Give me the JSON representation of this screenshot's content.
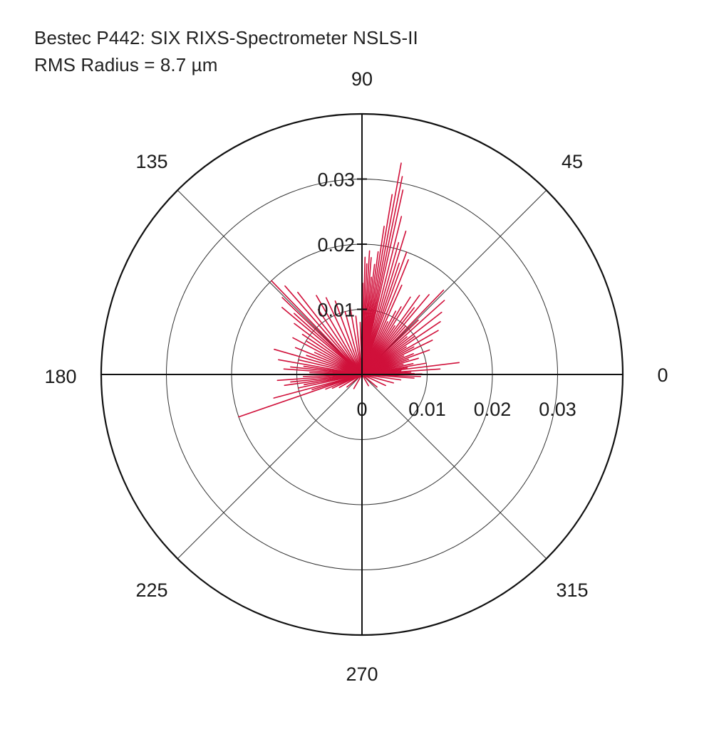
{
  "header": {
    "title": "Bestec P442: SIX RIXS-Spectrometer NSLS-II",
    "subtitle": "RMS Radius = 8.7  µm"
  },
  "chart_data": {
    "type": "polar",
    "title": "Bestec P442: SIX RIXS-Spectrometer NSLS-II",
    "subtitle": "RMS Radius = 8.7  µm",
    "r_range": [
      0,
      0.04
    ],
    "r_ticks": [
      0,
      0.01,
      0.02,
      0.03
    ],
    "r_tick_labels": [
      "0",
      "0.01",
      "0.02",
      "0.03"
    ],
    "angle_ticks": [
      0,
      45,
      90,
      135,
      180,
      225,
      270,
      315
    ],
    "angle_tick_labels": [
      "0",
      "45",
      "90",
      "135",
      "180",
      "225",
      "270",
      "315"
    ],
    "grid": true,
    "series": [
      {
        "color": "#d0103a",
        "points": [
          {
            "theta": 0.0,
            "r": 0.01
          },
          {
            "theta": 0.5,
            "r": 0.0092
          },
          {
            "theta": 1.0,
            "r": 0.008
          },
          {
            "theta": 2.5,
            "r": 0.0075
          },
          {
            "theta": 4.0,
            "r": 0.012
          },
          {
            "theta": 5.5,
            "r": 0.006
          },
          {
            "theta": 7.0,
            "r": 0.015
          },
          {
            "theta": 8.5,
            "r": 0.007
          },
          {
            "theta": 10.0,
            "r": 0.01
          },
          {
            "theta": 12.0,
            "r": 0.008
          },
          {
            "theta": 14.0,
            "r": 0.0065
          },
          {
            "theta": 16.0,
            "r": 0.009
          },
          {
            "theta": 18.0,
            "r": 0.0075
          },
          {
            "theta": 20.0,
            "r": 0.011
          },
          {
            "theta": 22.0,
            "r": 0.0085
          },
          {
            "theta": 24.0,
            "r": 0.007
          },
          {
            "theta": 26.0,
            "r": 0.012
          },
          {
            "theta": 28.0,
            "r": 0.009
          },
          {
            "theta": 30.0,
            "r": 0.0135
          },
          {
            "theta": 32.0,
            "r": 0.008
          },
          {
            "theta": 34.0,
            "r": 0.0145
          },
          {
            "theta": 36.0,
            "r": 0.01
          },
          {
            "theta": 38.0,
            "r": 0.0155
          },
          {
            "theta": 40.0,
            "r": 0.009
          },
          {
            "theta": 42.0,
            "r": 0.017
          },
          {
            "theta": 44.0,
            "r": 0.012
          },
          {
            "theta": 46.0,
            "r": 0.018
          },
          {
            "theta": 48.0,
            "r": 0.01
          },
          {
            "theta": 50.0,
            "r": 0.016
          },
          {
            "theta": 52.0,
            "r": 0.013
          },
          {
            "theta": 54.0,
            "r": 0.015
          },
          {
            "theta": 56.0,
            "r": 0.009
          },
          {
            "theta": 58.0,
            "r": 0.014
          },
          {
            "theta": 60.0,
            "r": 0.012
          },
          {
            "theta": 62.0,
            "r": 0.011
          },
          {
            "theta": 64.0,
            "r": 0.009
          },
          {
            "theta": 66.0,
            "r": 0.015
          },
          {
            "theta": 68.0,
            "r": 0.019
          },
          {
            "theta": 70.0,
            "r": 0.02
          },
          {
            "theta": 71.5,
            "r": 0.018
          },
          {
            "theta": 73.0,
            "r": 0.023
          },
          {
            "theta": 74.5,
            "r": 0.021
          },
          {
            "theta": 76.0,
            "r": 0.025
          },
          {
            "theta": 77.5,
            "r": 0.029
          },
          {
            "theta": 78.5,
            "r": 0.031
          },
          {
            "theta": 79.5,
            "r": 0.033
          },
          {
            "theta": 80.5,
            "r": 0.028
          },
          {
            "theta": 81.5,
            "r": 0.023
          },
          {
            "theta": 82.5,
            "r": 0.019
          },
          {
            "theta": 83.5,
            "r": 0.017
          },
          {
            "theta": 84.5,
            "r": 0.015
          },
          {
            "theta": 85.5,
            "r": 0.018
          },
          {
            "theta": 86.5,
            "r": 0.019
          },
          {
            "theta": 87.5,
            "r": 0.017
          },
          {
            "theta": 88.5,
            "r": 0.018
          },
          {
            "theta": 89.5,
            "r": 0.014
          },
          {
            "theta": 92.0,
            "r": 0.008
          },
          {
            "theta": 96.0,
            "r": 0.009
          },
          {
            "theta": 100.0,
            "r": 0.011
          },
          {
            "theta": 105.0,
            "r": 0.01
          },
          {
            "theta": 110.0,
            "r": 0.012
          },
          {
            "theta": 115.0,
            "r": 0.013
          },
          {
            "theta": 120.0,
            "r": 0.014
          },
          {
            "theta": 124.0,
            "r": 0.012
          },
          {
            "theta": 128.0,
            "r": 0.016
          },
          {
            "theta": 131.0,
            "r": 0.018
          },
          {
            "theta": 134.0,
            "r": 0.02
          },
          {
            "theta": 136.0,
            "r": 0.017
          },
          {
            "theta": 138.0,
            "r": 0.014
          },
          {
            "theta": 140.0,
            "r": 0.016
          },
          {
            "theta": 143.0,
            "r": 0.013
          },
          {
            "theta": 146.0,
            "r": 0.011
          },
          {
            "theta": 149.0,
            "r": 0.01
          },
          {
            "theta": 152.0,
            "r": 0.012
          },
          {
            "theta": 155.0,
            "r": 0.008
          },
          {
            "theta": 158.0,
            "r": 0.011
          },
          {
            "theta": 161.0,
            "r": 0.009
          },
          {
            "theta": 164.0,
            "r": 0.014
          },
          {
            "theta": 167.0,
            "r": 0.01
          },
          {
            "theta": 170.0,
            "r": 0.013
          },
          {
            "theta": 172.0,
            "r": 0.009
          },
          {
            "theta": 174.0,
            "r": 0.011
          },
          {
            "theta": 176.0,
            "r": 0.012
          },
          {
            "theta": 178.0,
            "r": 0.008
          },
          {
            "theta": 180.0,
            "r": 0.01
          },
          {
            "theta": 182.0,
            "r": 0.009
          },
          {
            "theta": 184.0,
            "r": 0.013
          },
          {
            "theta": 186.0,
            "r": 0.011
          },
          {
            "theta": 188.0,
            "r": 0.012
          },
          {
            "theta": 190.0,
            "r": 0.009
          },
          {
            "theta": 192.0,
            "r": 0.01
          },
          {
            "theta": 195.0,
            "r": 0.014
          },
          {
            "theta": 197.0,
            "r": 0.008
          },
          {
            "theta": 199.0,
            "r": 0.02
          },
          {
            "theta": 202.0,
            "r": 0.006
          },
          {
            "theta": 205.0,
            "r": 0.005
          },
          {
            "theta": 210.0,
            "r": 0.004
          },
          {
            "theta": 220.0,
            "r": 0.003
          },
          {
            "theta": 240.0,
            "r": 0.0025
          },
          {
            "theta": 270.0,
            "r": 0.001
          },
          {
            "theta": 300.0,
            "r": 0.002
          },
          {
            "theta": 320.0,
            "r": 0.003
          },
          {
            "theta": 335.0,
            "r": 0.004
          },
          {
            "theta": 345.0,
            "r": 0.005
          },
          {
            "theta": 352.0,
            "r": 0.006
          },
          {
            "theta": 356.0,
            "r": 0.008
          },
          {
            "theta": 358.0,
            "r": 0.009
          }
        ]
      }
    ]
  }
}
